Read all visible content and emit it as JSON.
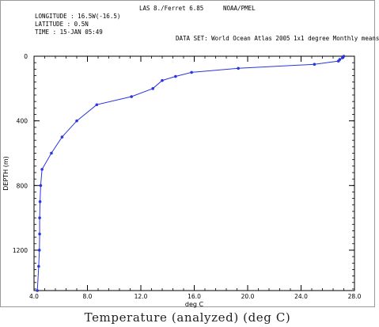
{
  "header": {
    "app": "LAS 8./Ferret 6.85",
    "org": "NOAA/PMEL",
    "longitude": "LONGITUDE : 16.5W(-16.5)",
    "latitude": "LATITUDE : 0.5N",
    "time": "TIME : 15-JAN 05:49",
    "dataset": "DATA SET: World Ocean Atlas 2005 1x1 degree Monthly means"
  },
  "figure_caption": "Temperature (analyzed) (deg C)",
  "chart_data": {
    "type": "line",
    "title": "",
    "xlabel": "deg C",
    "ylabel": "DEPTH (m)",
    "xlim": [
      4.0,
      28.0
    ],
    "ylim": [
      1450,
      0
    ],
    "y_inverted": true,
    "x_ticks": [
      4.0,
      8.0,
      12.0,
      16.0,
      20.0,
      24.0,
      28.0
    ],
    "x_tick_labels": [
      "4.0",
      "8.0",
      "12.0",
      "16.0",
      "20.0",
      "24.0",
      "28.0"
    ],
    "y_ticks": [
      0,
      400,
      800,
      1200
    ],
    "y_tick_labels": [
      "0",
      "400",
      "800",
      "1200"
    ],
    "x_minor_step": 0.8,
    "y_minor_step": 40,
    "grid": false,
    "series": [
      {
        "color": "#2b35e0",
        "x": [
          27.2,
          27.1,
          26.9,
          26.8,
          25.0,
          19.3,
          15.8,
          14.6,
          13.6,
          12.9,
          11.3,
          8.7,
          7.2,
          6.1,
          5.3,
          4.6,
          4.5,
          4.45,
          4.42,
          4.42,
          4.4,
          4.35,
          4.25
        ],
        "y": [
          0,
          10,
          20,
          30,
          50,
          75,
          100,
          125,
          150,
          200,
          250,
          300,
          400,
          500,
          600,
          700,
          800,
          900,
          1000,
          1100,
          1200,
          1300,
          1450
        ]
      }
    ]
  }
}
